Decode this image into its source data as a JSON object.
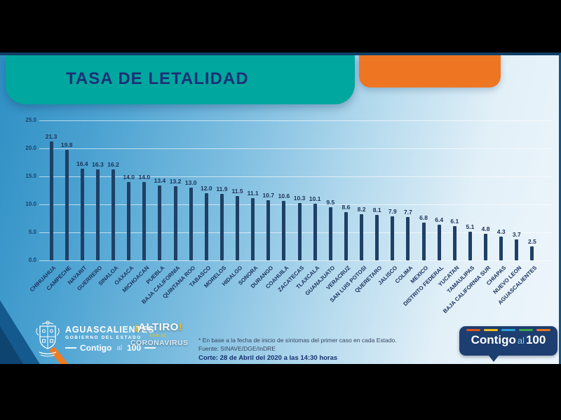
{
  "slide": {
    "title": "TASA DE LETALIDAD"
  },
  "chart_data": {
    "type": "bar",
    "title": "TASA DE LETALIDAD",
    "categories": [
      "CHIHUAHUA",
      "CAMPECHE",
      "NAYARIT",
      "GUERRERO",
      "SINALOA",
      "OAXACA",
      "MICHOACAN",
      "PUEBLA",
      "BAJA CALIFORNIA",
      "QUINTANA ROO",
      "TABASCO",
      "MORELOS",
      "HIDALGO",
      "SONORA",
      "DURANGO",
      "COAHUILA",
      "ZACATECAS",
      "TLAXCALA",
      "GUANAJUATO",
      "VERACRUZ",
      "SAN LUIS POTOSI",
      "QUERETARO",
      "JALISCO",
      "COLIMA",
      "MEXICO",
      "DISTRITO FEDERAL",
      "YUCATAN",
      "TAMAULIPAS",
      "BAJA CALIFORNIA SUR",
      "CHIAPAS",
      "NUEVO LEON",
      "AGUASCALIENTES"
    ],
    "values": [
      21.3,
      19.8,
      16.4,
      16.3,
      16.2,
      14.0,
      14.0,
      13.4,
      13.2,
      13.0,
      12.0,
      11.9,
      11.5,
      11.1,
      10.7,
      10.6,
      10.3,
      10.1,
      9.5,
      8.6,
      8.2,
      8.1,
      7.9,
      7.7,
      6.8,
      6.4,
      6.1,
      5.1,
      4.8,
      4.3,
      3.7,
      2.5
    ],
    "xlabel": "",
    "ylabel": "",
    "ylim": [
      0,
      25
    ],
    "yticks": [
      25.0,
      20.0,
      15.0,
      10.0,
      5.0,
      0.0
    ],
    "grid": true,
    "legend": "none",
    "bar_color": "#1f4066",
    "value_labels": "one-decimal-above-bar"
  },
  "footnotes": {
    "line1": "* En base a la fecha de inicio de síntomas del primer caso en cada Estado.",
    "line2": "Fuente: SINAVE/DGE/InDRE",
    "line3": "Corte: 28 de Abril del 2020 a las 14:30 horas"
  },
  "logos": {
    "state": {
      "name": "AGUASCALIENTES",
      "government": "GOBIERNO DEL ESTADO",
      "contigo": "Contigo",
      "al": "al",
      "hundred": "100"
    },
    "altiro": {
      "excl_open": "¡",
      "word": "ALTIRO",
      "excl_close": "!",
      "small": "CON EL",
      "bottom": "CORONAVIRUS"
    },
    "badge": {
      "contigo": "Contigo",
      "al": "al",
      "hundred": "100"
    }
  },
  "colors": {
    "header_teal": "#00a79e",
    "header_orange": "#ee7623",
    "title_navy": "#1b2f77",
    "bar_navy": "#1f4066",
    "badge_navy": "#1d3e70",
    "badge_dash_colors": [
      "#e2531d",
      "#f0bd1b",
      "#2c9cd6",
      "#3fa246",
      "#e8751f"
    ]
  }
}
